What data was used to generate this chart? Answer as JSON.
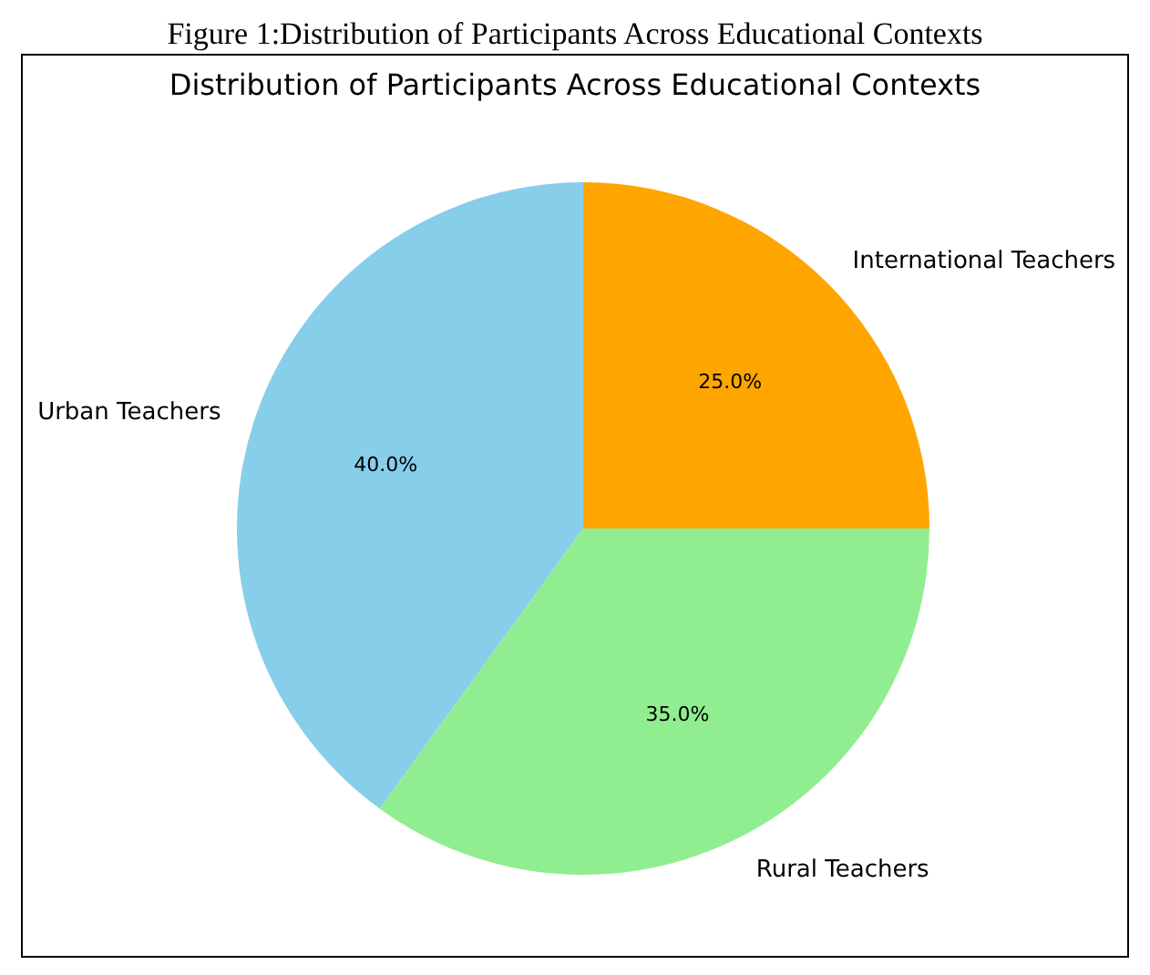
{
  "chart_data": {
    "type": "pie",
    "title": "Distribution of Participants Across Educational Contexts",
    "annotations": [
      "Figure 1:Distribution of Participants Across Educational Contexts"
    ],
    "categories": [
      "Urban Teachers",
      "Rural Teachers",
      "International Teachers"
    ],
    "values": [
      40,
      35,
      25
    ],
    "colors": [
      "#87ceeb",
      "#90ee90",
      "#ffa500"
    ],
    "value_labels": [
      "40.0%",
      "35.0%",
      "25.0%"
    ]
  }
}
